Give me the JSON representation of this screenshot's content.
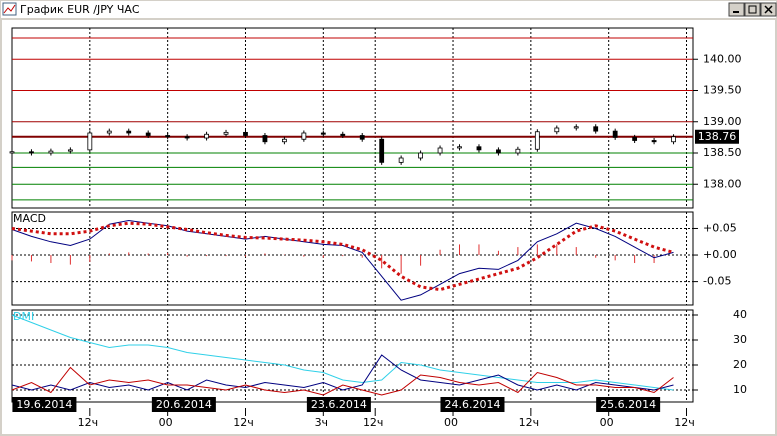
{
  "window": {
    "title": "График EUR /JPY  ЧАС"
  },
  "chart_data": [
    {
      "type": "candlestick",
      "x": [
        0,
        3,
        6,
        9,
        12,
        15,
        18,
        21,
        24,
        27,
        30,
        33,
        36,
        39,
        42,
        45,
        48,
        51,
        54,
        57,
        60,
        63,
        66,
        69,
        72,
        75,
        78,
        81,
        84,
        87,
        90,
        93,
        96,
        99,
        102
      ],
      "xlim": [
        0,
        105
      ],
      "open": [
        138.5,
        138.52,
        138.5,
        138.53,
        138.55,
        138.82,
        138.85,
        138.82,
        138.78,
        138.76,
        138.74,
        138.8,
        138.83,
        138.78,
        138.68,
        138.72,
        138.82,
        138.8,
        138.78,
        138.72,
        138.35,
        138.42,
        138.5,
        138.58,
        138.6,
        138.55,
        138.5,
        138.56,
        138.84,
        138.9,
        138.92,
        138.85,
        138.75,
        138.7,
        138.68
      ],
      "high": [
        138.56,
        138.56,
        138.57,
        138.59,
        138.86,
        138.89,
        138.89,
        138.86,
        138.82,
        138.8,
        138.84,
        138.87,
        138.87,
        138.82,
        138.76,
        138.86,
        138.86,
        138.84,
        138.82,
        138.76,
        138.46,
        138.54,
        138.62,
        138.64,
        138.64,
        138.59,
        138.6,
        138.88,
        138.94,
        138.96,
        138.96,
        138.89,
        138.79,
        138.74,
        138.8
      ],
      "low": [
        138.46,
        138.46,
        138.46,
        138.49,
        138.51,
        138.78,
        138.78,
        138.74,
        138.72,
        138.7,
        138.7,
        138.76,
        138.74,
        138.64,
        138.64,
        138.68,
        138.76,
        138.74,
        138.68,
        138.31,
        138.31,
        138.38,
        138.46,
        138.54,
        138.51,
        138.46,
        138.46,
        138.52,
        138.8,
        138.86,
        138.81,
        138.71,
        138.66,
        138.64,
        138.64
      ],
      "close": [
        138.52,
        138.5,
        138.53,
        138.55,
        138.82,
        138.85,
        138.82,
        138.78,
        138.76,
        138.74,
        138.8,
        138.83,
        138.78,
        138.68,
        138.72,
        138.82,
        138.8,
        138.78,
        138.72,
        138.35,
        138.42,
        138.5,
        138.58,
        138.6,
        138.55,
        138.5,
        138.56,
        138.84,
        138.9,
        138.92,
        138.85,
        138.75,
        138.7,
        138.68,
        138.76
      ],
      "ylim": [
        137.62,
        140.5
      ],
      "yticks": [
        {
          "value": 138,
          "label": "138.00"
        },
        {
          "value": 138.5,
          "label": "138.50"
        },
        {
          "value": 139,
          "label": "139.00"
        },
        {
          "value": 139.5,
          "label": "139.50"
        },
        {
          "value": 140,
          "label": "140.00"
        }
      ],
      "levels": [
        {
          "value": 140.34,
          "color": "#c00000"
        },
        {
          "value": 140.0,
          "color": "#c00000"
        },
        {
          "value": 139.5,
          "color": "#c00000"
        },
        {
          "value": 139.0,
          "color": "#a00000"
        },
        {
          "value": 138.76,
          "color": "#800000"
        },
        {
          "value": 138.5,
          "color": "#008000"
        },
        {
          "value": 138.27,
          "color": "#008000"
        },
        {
          "value": 138.0,
          "color": "#008000"
        },
        {
          "value": 137.75,
          "color": "#008000"
        }
      ],
      "last_price": 138.76
    },
    {
      "type": "line",
      "title": "MACD",
      "x": [
        0,
        3,
        6,
        9,
        12,
        15,
        18,
        21,
        24,
        27,
        30,
        33,
        36,
        39,
        42,
        45,
        48,
        51,
        54,
        57,
        60,
        63,
        66,
        69,
        72,
        75,
        78,
        81,
        84,
        87,
        90,
        93,
        96,
        99,
        102
      ],
      "xlim": [
        0,
        105
      ],
      "ylim": [
        -0.094,
        0.081
      ],
      "yticks": [
        {
          "value": -0.05,
          "label": "-0.05"
        },
        {
          "value": 0,
          "label": "+0.00"
        },
        {
          "value": 0.05,
          "label": "+0.05"
        }
      ],
      "series": [
        {
          "type": "bar",
          "color": "#e03030",
          "values": [
            -0.01,
            -0.012,
            -0.015,
            -0.018,
            -0.013,
            0.003,
            0.005,
            0.003,
            0.004,
            -0.003,
            -0.002,
            -0.002,
            -0.003,
            0.003,
            0.001,
            -0.003,
            -0.005,
            -0.002,
            -0.005,
            -0.025,
            -0.035,
            -0.02,
            0.01,
            0.02,
            0.02,
            0.008,
            0.015,
            0.02,
            0.02,
            0.015,
            -0.005,
            -0.01,
            -0.015,
            -0.015,
            0.0
          ]
        },
        {
          "type": "line",
          "color": "#000080",
          "values": [
            0.048,
            0.035,
            0.025,
            0.018,
            0.03,
            0.058,
            0.065,
            0.06,
            0.055,
            0.045,
            0.04,
            0.035,
            0.03,
            0.035,
            0.03,
            0.025,
            0.02,
            0.018,
            0.005,
            -0.04,
            -0.085,
            -0.075,
            -0.055,
            -0.035,
            -0.025,
            -0.027,
            -0.01,
            0.025,
            0.04,
            0.06,
            0.05,
            0.035,
            0.015,
            -0.005,
            0.005
          ]
        },
        {
          "type": "dotted",
          "color": "#d01010",
          "values": [
            0.05,
            0.045,
            0.04,
            0.04,
            0.045,
            0.055,
            0.06,
            0.058,
            0.053,
            0.048,
            0.042,
            0.037,
            0.033,
            0.032,
            0.03,
            0.028,
            0.025,
            0.02,
            0.01,
            -0.01,
            -0.04,
            -0.06,
            -0.065,
            -0.055,
            -0.045,
            -0.035,
            -0.025,
            -0.005,
            0.02,
            0.045,
            0.055,
            0.045,
            0.03,
            0.015,
            0.005
          ]
        }
      ]
    },
    {
      "type": "line",
      "title": "DMI",
      "x": [
        0,
        3,
        6,
        9,
        12,
        15,
        18,
        21,
        24,
        27,
        30,
        33,
        36,
        39,
        42,
        45,
        48,
        51,
        54,
        57,
        60,
        63,
        66,
        69,
        72,
        75,
        78,
        81,
        84,
        87,
        90,
        93,
        96,
        99,
        102
      ],
      "xlim": [
        0,
        105
      ],
      "ylim": [
        5.2,
        42
      ],
      "yticks": [
        10,
        20,
        30,
        40
      ],
      "series": [
        {
          "type": "line",
          "color": "#30d0e8",
          "values": [
            40,
            37,
            34,
            31,
            29,
            27,
            28,
            28,
            27,
            25,
            24,
            23,
            22,
            21,
            20,
            18,
            17,
            14,
            13,
            14,
            21,
            20,
            18,
            17,
            16,
            15,
            14,
            13,
            13,
            13,
            14,
            13,
            12,
            11,
            10
          ]
        },
        {
          "type": "line",
          "color": "#000080",
          "values": [
            12,
            10,
            12,
            10,
            13,
            11,
            12,
            10,
            13,
            10,
            14,
            12,
            11,
            13,
            12,
            11,
            13,
            10,
            12,
            24,
            18,
            14,
            13,
            12,
            14,
            16,
            12,
            10,
            12,
            10,
            13,
            12,
            11,
            10,
            12
          ]
        },
        {
          "type": "line",
          "color": "#c00000",
          "values": [
            10,
            13,
            9,
            19,
            12,
            14,
            13,
            14,
            12,
            12,
            11,
            10,
            12,
            10,
            9,
            10,
            8,
            12,
            10,
            8,
            10,
            16,
            15,
            13,
            12,
            13,
            9,
            17,
            15,
            12,
            12,
            11,
            11,
            9,
            15
          ]
        }
      ],
      "xticks": [
        {
          "value": 12,
          "label": "12ч"
        },
        {
          "value": 24,
          "label": "00"
        },
        {
          "value": 36,
          "label": "12ч"
        },
        {
          "value": 48,
          "label": "3ч"
        },
        {
          "value": 56,
          "label": "12ч"
        },
        {
          "value": 68,
          "label": "00"
        },
        {
          "value": 80,
          "label": "12ч"
        },
        {
          "value": 92,
          "label": "00"
        },
        {
          "value": 104,
          "label": "12ч"
        }
      ],
      "date_labels": [
        {
          "value": 5,
          "label": "19.6.2014"
        },
        {
          "value": 26.5,
          "label": "20.6.2014"
        },
        {
          "value": 50.4,
          "label": "23.6.2014"
        },
        {
          "value": 71,
          "label": "24.6.2014"
        },
        {
          "value": 95,
          "label": "25.6.2014"
        }
      ]
    }
  ]
}
